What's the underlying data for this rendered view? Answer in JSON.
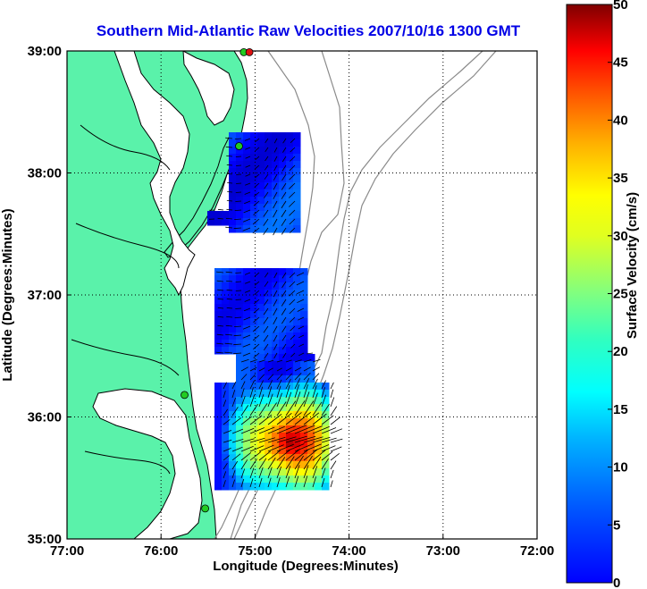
{
  "title": "Southern Mid-Atlantic Raw Velocities 2007/10/16 1300 GMT",
  "x_axis": {
    "label": "Longitude (Degrees:Minutes)",
    "ticks": [
      "77:00",
      "76:00",
      "75:00",
      "74:00",
      "73:00",
      "72:00"
    ]
  },
  "y_axis": {
    "label": "Latitude (Degrees:Minutes)",
    "ticks": [
      "39:00",
      "38:00",
      "37:00",
      "36:00",
      "35:00"
    ]
  },
  "colorbar": {
    "label": "Surface Velocity (cm/s)",
    "ticks": [
      "50",
      "45",
      "40",
      "35",
      "30",
      "25",
      "20",
      "15",
      "10",
      "5",
      "0"
    ],
    "min": 0,
    "max": 50,
    "colormap": "jet"
  },
  "colors": {
    "title": "#0000e6",
    "land": "#5af2aa",
    "water": "#ffffff",
    "bathymetry": "#8a8a8a",
    "station_green": "#22cc22",
    "station_red": "#dd1111"
  },
  "map": {
    "lon_range": [
      -77,
      -72
    ],
    "lat_range": [
      35,
      39
    ],
    "grid": true,
    "stations": [
      {
        "lon": -75.12,
        "lat": 38.99,
        "status": "ok"
      },
      {
        "lon": -75.06,
        "lat": 38.99,
        "status": "down"
      },
      {
        "lon": -75.17,
        "lat": 38.22,
        "status": "ok"
      },
      {
        "lon": -75.75,
        "lat": 36.18,
        "status": "ok"
      },
      {
        "lon": -75.53,
        "lat": 35.25,
        "status": "ok"
      }
    ]
  }
}
